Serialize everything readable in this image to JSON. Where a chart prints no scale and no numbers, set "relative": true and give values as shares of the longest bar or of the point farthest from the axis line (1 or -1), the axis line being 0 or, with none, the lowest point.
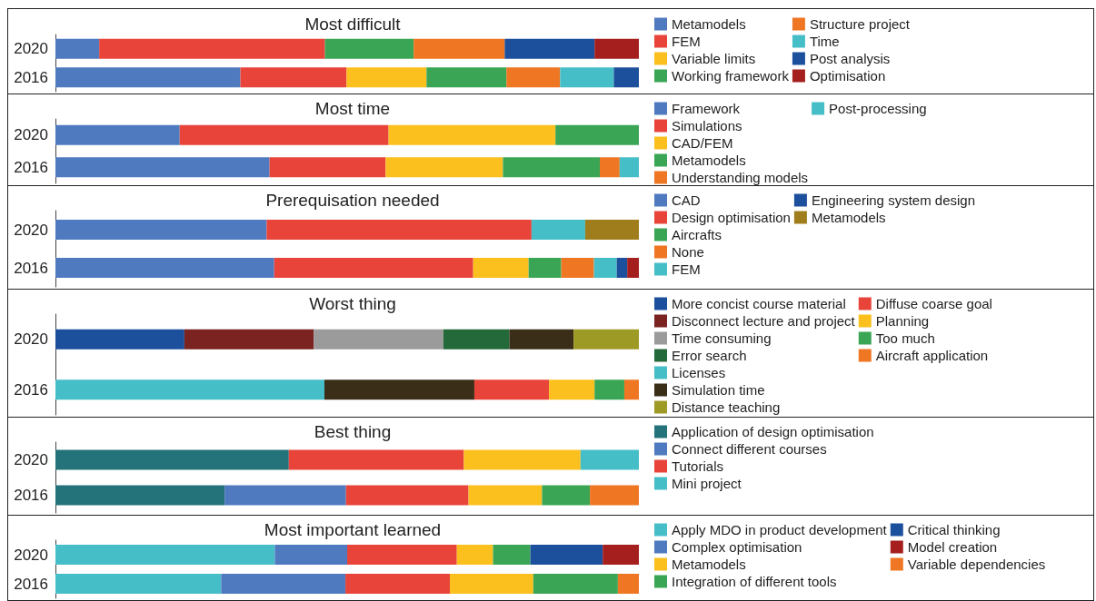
{
  "chart_data": [
    {
      "type": "bar",
      "orientation": "horizontal",
      "stacked": true,
      "relative": true,
      "legend": "right",
      "title": "Most difficult",
      "categories": [
        "2020",
        "2016"
      ],
      "series": [
        {
          "name": "Metamodels",
          "color": "#4f7ac0",
          "values": [
            0.075,
            0.317
          ]
        },
        {
          "name": "FEM",
          "color": "#e8443a",
          "values": [
            0.387,
            0.182
          ]
        },
        {
          "name": "Variable limits",
          "color": "#fbbf1e",
          "values": [
            null,
            0.137
          ]
        },
        {
          "name": "Working framework",
          "color": "#3aa655",
          "values": [
            0.152,
            0.137
          ]
        },
        {
          "name": "Structure project",
          "color": "#ef7622",
          "values": [
            0.156,
            0.092
          ]
        },
        {
          "name": "Time",
          "color": "#46bec8",
          "values": [
            null,
            0.092
          ]
        },
        {
          "name": "Post analysis",
          "color": "#1c4f9c",
          "values": [
            0.154,
            0.043
          ]
        },
        {
          "name": "Optimisation",
          "color": "#a51f1f",
          "values": [
            0.076,
            null
          ]
        }
      ]
    },
    {
      "type": "bar",
      "orientation": "horizontal",
      "stacked": true,
      "relative": true,
      "legend": "right",
      "title": "Most time",
      "categories": [
        "2020",
        "2016"
      ],
      "series": [
        {
          "name": "Framework",
          "color": "#4f7ac0",
          "values": [
            0.213,
            0.367
          ]
        },
        {
          "name": "Simulations",
          "color": "#e8443a",
          "values": [
            0.358,
            0.199
          ]
        },
        {
          "name": "CAD/FEM",
          "color": "#fbbf1e",
          "values": [
            0.286,
            0.201
          ]
        },
        {
          "name": "Metamodels",
          "color": "#3aa655",
          "values": [
            0.143,
            0.166
          ]
        },
        {
          "name": "Understanding models",
          "color": "#ef7622",
          "values": [
            null,
            0.034
          ]
        },
        {
          "name": "Post-processing",
          "color": "#46bec8",
          "values": [
            null,
            0.033
          ]
        }
      ]
    },
    {
      "type": "bar",
      "orientation": "horizontal",
      "stacked": true,
      "relative": true,
      "legend": "right",
      "title": "Prerequisation needed",
      "categories": [
        "2020",
        "2016"
      ],
      "series": [
        {
          "name": "CAD",
          "color": "#4f7ac0",
          "values": [
            0.362,
            0.375
          ]
        },
        {
          "name": "Design optimisation",
          "color": "#e8443a",
          "values": [
            0.454,
            0.341
          ]
        },
        {
          "color": "#fbbf1e",
          "values": [
            null,
            0.095
          ]
        },
        {
          "name": "Aircrafts",
          "color": "#3aa655",
          "values": [
            null,
            0.056
          ]
        },
        {
          "name": "None",
          "color": "#ef7622",
          "values": [
            null,
            0.056
          ]
        },
        {
          "name": "FEM",
          "color": "#46bec8",
          "values": [
            0.092,
            0.039
          ]
        },
        {
          "name": "Engineering system design",
          "color": "#1c4f9c",
          "values": [
            null,
            0.018
          ]
        },
        {
          "color": "#a51f1f",
          "values": [
            null,
            0.02
          ]
        },
        {
          "name": "Metamodels",
          "color": "#a07d1c",
          "values": [
            0.092,
            null
          ]
        }
      ]
    },
    {
      "type": "bar",
      "orientation": "horizontal",
      "stacked": true,
      "relative": true,
      "legend": "right",
      "title": "Worst thing",
      "categories": [
        "2020",
        "2016"
      ],
      "series": [
        {
          "name": "More concist course material",
          "color": "#1c4f9c",
          "values": [
            0.221,
            null
          ]
        },
        {
          "name": "Disconnect lecture and project",
          "color": "#7a2320",
          "values": [
            0.222,
            null
          ]
        },
        {
          "name": "Time consuming",
          "color": "#9b9b9b",
          "values": [
            0.222,
            null
          ]
        },
        {
          "name": "Error search",
          "color": "#23693a",
          "values": [
            0.113,
            null
          ]
        },
        {
          "name": "Licenses",
          "color": "#46bec8",
          "values": [
            null,
            0.461
          ]
        },
        {
          "name": "Simulation time",
          "color": "#3a2e18",
          "values": [
            0.11,
            0.257
          ]
        },
        {
          "name": "Distance teaching",
          "color": "#9e9a26",
          "values": [
            0.112,
            null
          ]
        },
        {
          "name": "Diffuse coarse goal",
          "color": "#e8443a",
          "values": [
            null,
            0.128
          ]
        },
        {
          "name": "Planning",
          "color": "#fbbf1e",
          "values": [
            null,
            0.078
          ]
        },
        {
          "name": "Too much",
          "color": "#3aa655",
          "values": [
            null,
            0.051
          ]
        },
        {
          "name": "Aircraft application",
          "color": "#ef7622",
          "values": [
            null,
            0.025
          ]
        }
      ]
    },
    {
      "type": "bar",
      "orientation": "horizontal",
      "stacked": true,
      "relative": true,
      "legend": "right",
      "title": "Best thing",
      "categories": [
        "2020",
        "2016"
      ],
      "series": [
        {
          "name": "Application of design optimisation",
          "color": "#24737a",
          "values": [
            0.4,
            0.29
          ]
        },
        {
          "name": "Connect different courses",
          "color": "#4f7ac0",
          "values": [
            null,
            0.208
          ]
        },
        {
          "name": "Tutorials",
          "color": "#e8443a",
          "values": [
            0.3,
            0.21
          ]
        },
        {
          "color": "#fbbf1e",
          "values": [
            0.2,
            0.126
          ]
        },
        {
          "color": "#3aa655",
          "values": [
            null,
            0.082
          ]
        },
        {
          "name": "Mini project",
          "color": "#46bec8",
          "values": [
            0.1,
            null
          ]
        },
        {
          "color": "#ef7622",
          "values": [
            null,
            0.084
          ]
        }
      ]
    },
    {
      "type": "bar",
      "orientation": "horizontal",
      "stacked": true,
      "relative": true,
      "legend": "right",
      "title": "Most important learned",
      "categories": [
        "2020",
        "2016"
      ],
      "series": [
        {
          "name": "Apply MDO in product development",
          "color": "#46bec8",
          "values": [
            0.376,
            0.284
          ]
        },
        {
          "name": "Complex optimisation",
          "color": "#4f7ac0",
          "values": [
            0.124,
            0.213
          ]
        },
        {
          "color": "#e8443a",
          "values": [
            0.188,
            0.179
          ]
        },
        {
          "name": "Metamodels",
          "color": "#fbbf1e",
          "values": [
            0.062,
            0.143
          ]
        },
        {
          "name": "Integration of different tools",
          "color": "#3aa655",
          "values": [
            0.064,
            0.145
          ]
        },
        {
          "name": "Critical thinking",
          "color": "#1c4f9c",
          "values": [
            0.124,
            null
          ]
        },
        {
          "name": "Model creation",
          "color": "#a51f1f",
          "values": [
            0.062,
            null
          ]
        },
        {
          "name": "Variable dependencies",
          "color": "#ef7622",
          "values": [
            null,
            0.036
          ]
        }
      ]
    }
  ]
}
